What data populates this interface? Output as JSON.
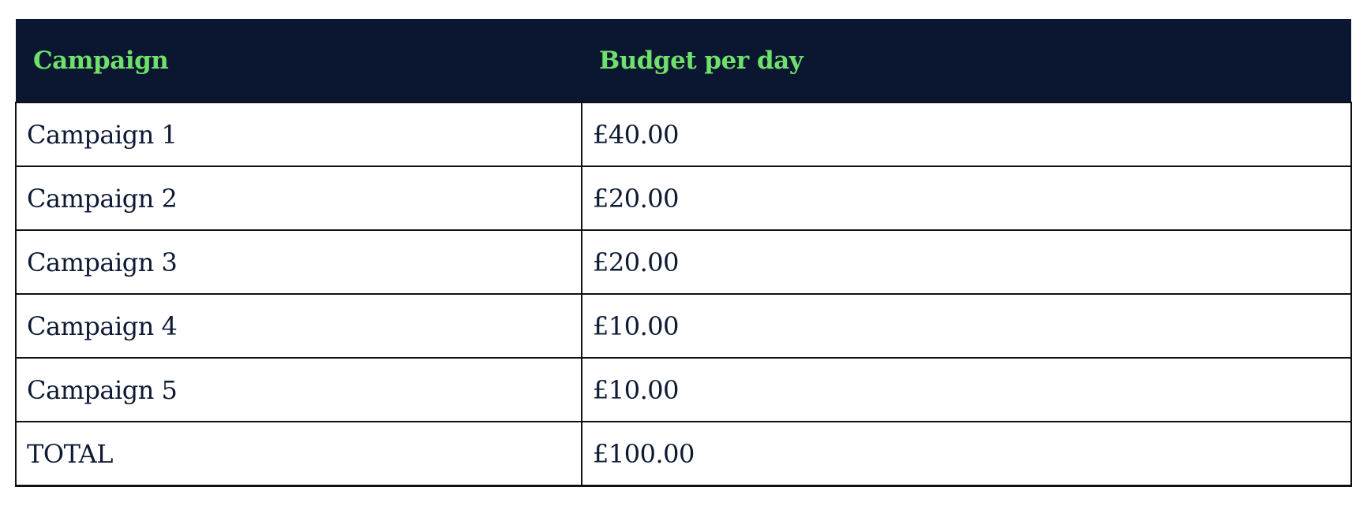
{
  "table": {
    "headers": [
      "Campaign",
      "Budget per day"
    ],
    "rows": [
      [
        "Campaign 1",
        "£40.00"
      ],
      [
        "Campaign 2",
        "£20.00"
      ],
      [
        "Campaign 3",
        "£20.00"
      ],
      [
        "Campaign 4",
        "£10.00"
      ],
      [
        "Campaign 5",
        "£10.00"
      ],
      [
        "TOTAL",
        "£100.00"
      ]
    ]
  },
  "colors": {
    "header_bg": "#0b1730",
    "header_text": "#6ee06b",
    "body_text": "#0d1a33"
  }
}
